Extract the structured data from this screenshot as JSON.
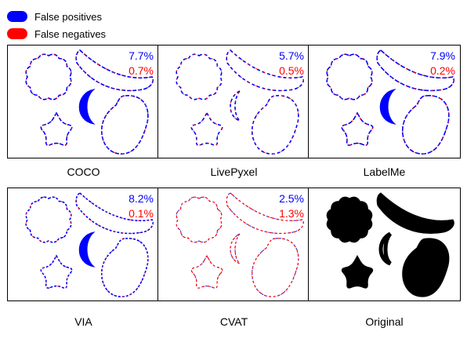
{
  "legend": {
    "false_positives": {
      "label": "False positives",
      "color": "#0000ff"
    },
    "false_negatives": {
      "label": "False negatives",
      "color": "#ff0000"
    }
  },
  "panels": [
    {
      "name": "COCO",
      "fp": "7.7%",
      "fn": "0.7%"
    },
    {
      "name": "LivePyxel",
      "fp": "5.7%",
      "fn": "0.5%"
    },
    {
      "name": "LabelMe",
      "fp": "7.9%",
      "fn": "0.2%"
    },
    {
      "name": "VIA",
      "fp": "8.2%",
      "fn": "0.1%"
    },
    {
      "name": "CVAT",
      "fp": "2.5%",
      "fn": "1.3%"
    },
    {
      "name": "Original"
    }
  ]
}
